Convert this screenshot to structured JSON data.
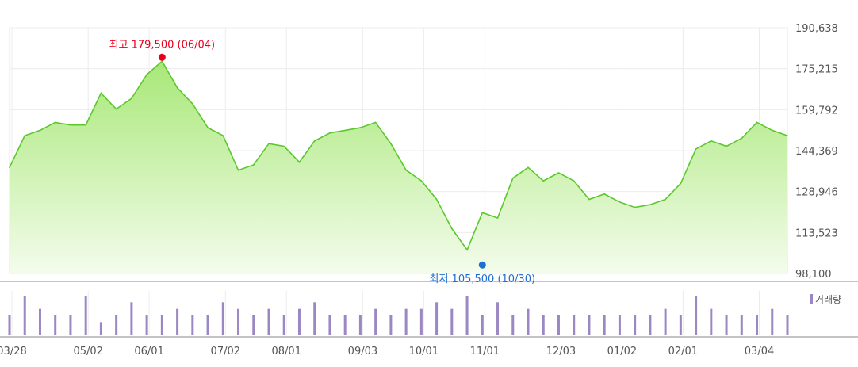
{
  "chart_data": {
    "type": "area",
    "series": [
      {
        "name": "",
        "color": "#5cc82c",
        "x": [
          "03/28",
          "04/04",
          "04/11",
          "04/18",
          "04/25",
          "05/02",
          "05/09",
          "05/16",
          "05/23",
          "05/30",
          "06/06",
          "06/13",
          "06/20",
          "06/27",
          "07/04",
          "07/11",
          "07/18",
          "07/25",
          "08/01",
          "08/08",
          "08/15",
          "08/22",
          "08/29",
          "09/05",
          "09/12",
          "09/19",
          "09/26",
          "10/03",
          "10/10",
          "10/17",
          "10/24",
          "10/30",
          "11/06",
          "11/13",
          "11/20",
          "11/27",
          "12/04",
          "12/11",
          "12/18",
          "12/25",
          "01/01",
          "01/08",
          "01/15",
          "01/22",
          "01/29",
          "02/05",
          "02/12",
          "02/19",
          "02/26",
          "03/04",
          "03/11",
          "03/18"
        ],
        "values": [
          138000,
          150000,
          152000,
          155000,
          154000,
          154000,
          166000,
          160000,
          164000,
          173000,
          178000,
          168000,
          162000,
          153000,
          150000,
          137000,
          139000,
          147000,
          146000,
          140000,
          148000,
          151000,
          152000,
          153000,
          155000,
          147000,
          137000,
          133000,
          126000,
          115000,
          107000,
          121000,
          119000,
          134000,
          138000,
          133000,
          136000,
          133000,
          126000,
          128000,
          125000,
          123000,
          124000,
          126000,
          132000,
          145000,
          148000,
          146000,
          149000,
          155000,
          152000,
          150000
        ]
      }
    ],
    "volume": {
      "label": "거래량",
      "color": "#9b87c2",
      "values": [
        3,
        6,
        4,
        3,
        3,
        6,
        2,
        3,
        5,
        3,
        3,
        4,
        3,
        3,
        5,
        4,
        3,
        4,
        3,
        4,
        5,
        3,
        3,
        3,
        4,
        3,
        4,
        4,
        5,
        4,
        6,
        3,
        5,
        3,
        4,
        3,
        3,
        3,
        3,
        3,
        3,
        3,
        3,
        4,
        3,
        6,
        4,
        3,
        3,
        3,
        4,
        3
      ]
    },
    "xlabel": "",
    "ylabel": "",
    "x_ticks": [
      "03/28",
      "05/02",
      "06/01",
      "07/02",
      "08/01",
      "09/03",
      "10/01",
      "11/01",
      "12/03",
      "01/02",
      "02/01",
      "03/04"
    ],
    "y_ticks": [
      "190,638",
      "175,215",
      "159,792",
      "144,369",
      "128,946",
      "113,523",
      "98,100"
    ],
    "ylim": [
      98100,
      190638
    ],
    "grid": true,
    "annotations": {
      "high": {
        "label": "최고 179,500 (06/04)",
        "value": 179500,
        "x": "06/04",
        "color": "#e8001c"
      },
      "low": {
        "label": "최저 105,500 (10/30)",
        "value": 105500,
        "x": "10/30",
        "color": "#1f6fd0"
      }
    }
  }
}
